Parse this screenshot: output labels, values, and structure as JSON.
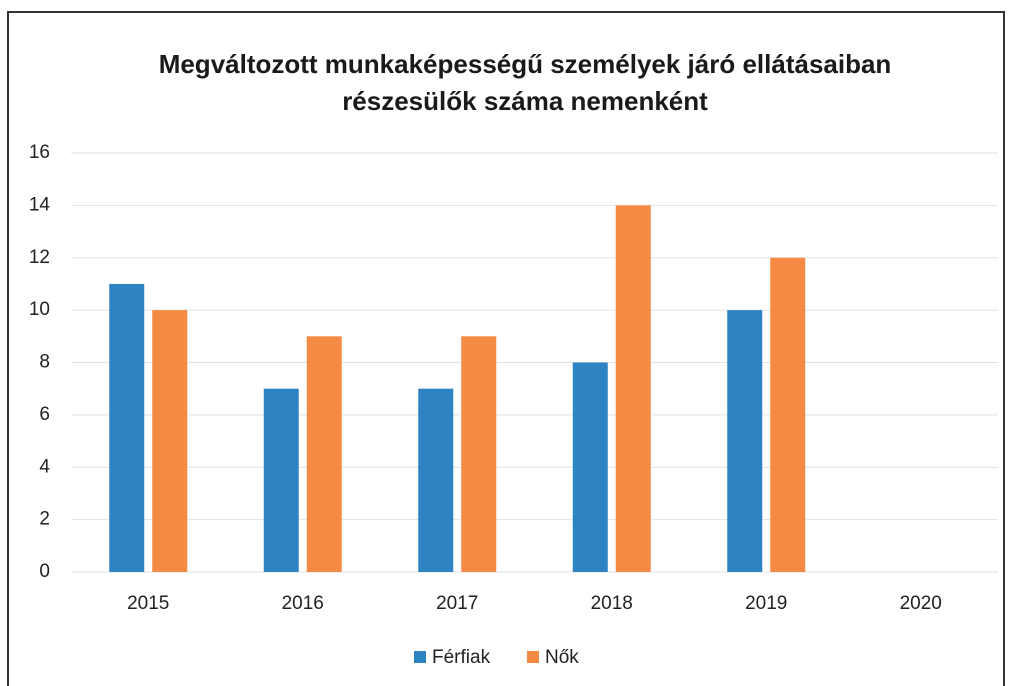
{
  "chart_data": {
    "type": "bar",
    "title": [
      "Megváltozott munkaképességű személyek járó ellátásaiban",
      "részesülők száma nemenként"
    ],
    "categories": [
      "2015",
      "2016",
      "2017",
      "2018",
      "2019",
      "2020"
    ],
    "series": [
      {
        "name": "Férfiak",
        "color": "#2e83c3",
        "values": [
          11,
          7,
          7,
          8,
          10,
          null
        ]
      },
      {
        "name": "Nők",
        "color": "#f58a45",
        "values": [
          10,
          9,
          9,
          14,
          12,
          null
        ]
      }
    ],
    "ylim": [
      0,
      16
    ],
    "yticks": [
      0,
      2,
      4,
      6,
      8,
      10,
      12,
      14,
      16
    ],
    "grid": true,
    "legend": "bottom"
  }
}
